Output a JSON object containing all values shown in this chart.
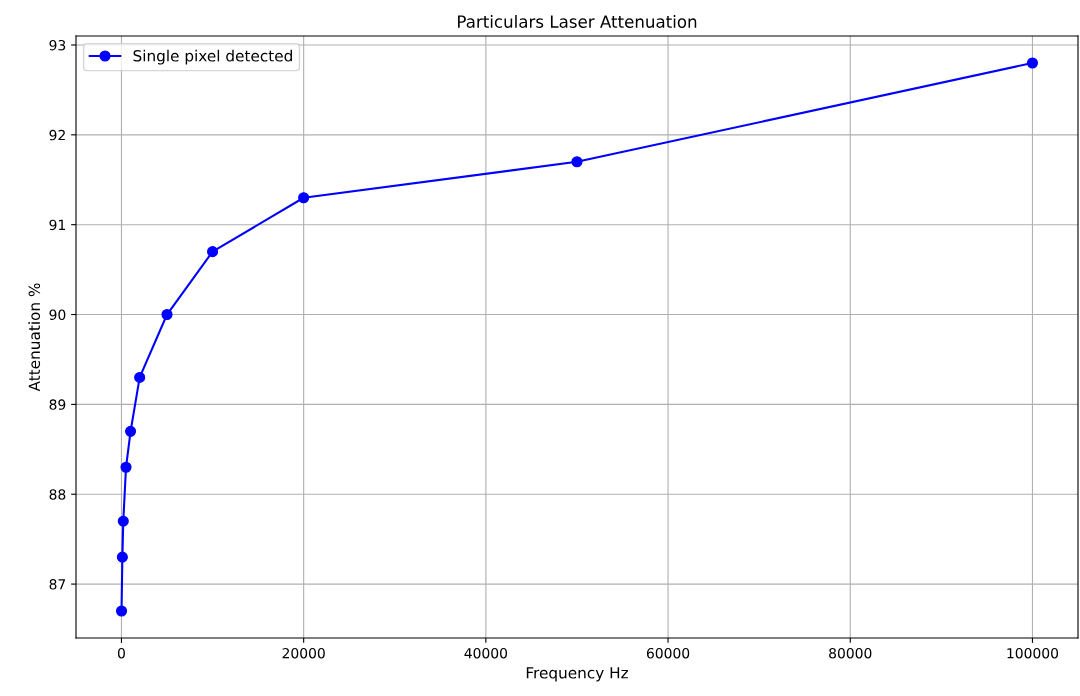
{
  "chart_data": {
    "type": "line",
    "title": "Particulars Laser Attenuation",
    "xlabel": "Frequency Hz",
    "ylabel": "Attenuation %",
    "x": [
      10,
      100,
      200,
      500,
      1000,
      2000,
      5000,
      10000,
      20000,
      50000,
      100000
    ],
    "series": [
      {
        "name": "Single pixel detected",
        "color": "#0000ff",
        "values": [
          86.7,
          87.3,
          87.7,
          88.3,
          88.7,
          89.3,
          90.0,
          90.7,
          91.3,
          91.7,
          92.8
        ]
      }
    ],
    "xlim": [
      -4990,
      105000
    ],
    "xticks": [
      0,
      20000,
      40000,
      60000,
      80000,
      100000
    ],
    "ylim": [
      86.4,
      93.1
    ],
    "yticks": [
      87,
      88,
      89,
      90,
      91,
      92,
      93
    ],
    "grid": true,
    "legend": "top left",
    "marker": "circle",
    "line_style": "solid"
  }
}
